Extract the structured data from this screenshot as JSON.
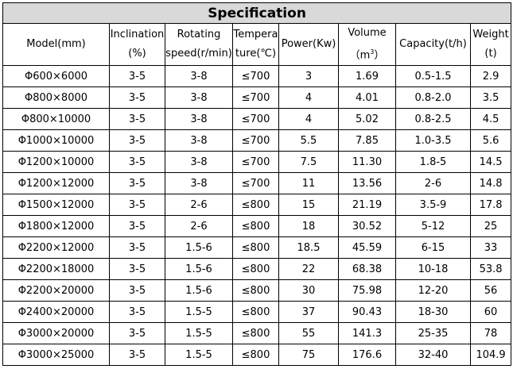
{
  "title": "Specification",
  "headers": {
    "model": "Model(mm)",
    "inclination_1": "Inclination",
    "inclination_2": "(%)",
    "rotating_1": "Rotating",
    "rotating_2": "speed(r/min)",
    "temperature_1": "Tempera",
    "temperature_2": "ture(℃)",
    "power": "Power(Kw)",
    "volume_1": "Volume",
    "volume_2": "（m",
    "volume_sup": "3",
    "volume_3": "）",
    "capacity": "Capacity(t/h)",
    "weight_1": "Weight",
    "weight_2": "(t)"
  },
  "rows": [
    {
      "model": "Φ600×6000",
      "inclination": "3-5",
      "speed": "3-8",
      "temperature": "≤700",
      "power": "3",
      "volume": "1.69",
      "capacity": "0.5-1.5",
      "weight": "2.9"
    },
    {
      "model": "Φ800×8000",
      "inclination": "3-5",
      "speed": "3-8",
      "temperature": "≤700",
      "power": "4",
      "volume": "4.01",
      "capacity": "0.8-2.0",
      "weight": "3.5"
    },
    {
      "model": "Φ800×10000",
      "inclination": "3-5",
      "speed": "3-8",
      "temperature": "≤700",
      "power": "4",
      "volume": "5.02",
      "capacity": "0.8-2.5",
      "weight": "4.5"
    },
    {
      "model": "Φ1000×10000",
      "inclination": "3-5",
      "speed": "3-8",
      "temperature": "≤700",
      "power": "5.5",
      "volume": "7.85",
      "capacity": "1.0-3.5",
      "weight": "5.6"
    },
    {
      "model": "Φ1200×10000",
      "inclination": "3-5",
      "speed": "3-8",
      "temperature": "≤700",
      "power": "7.5",
      "volume": "11.30",
      "capacity": "1.8-5",
      "weight": "14.5"
    },
    {
      "model": "Φ1200×12000",
      "inclination": "3-5",
      "speed": "3-8",
      "temperature": "≤700",
      "power": "11",
      "volume": "13.56",
      "capacity": "2-6",
      "weight": "14.8"
    },
    {
      "model": "Φ1500×12000",
      "inclination": "3-5",
      "speed": "2-6",
      "temperature": "≤800",
      "power": "15",
      "volume": "21.19",
      "capacity": "3.5-9",
      "weight": "17.8"
    },
    {
      "model": "Φ1800×12000",
      "inclination": "3-5",
      "speed": "2-6",
      "temperature": "≤800",
      "power": "18",
      "volume": "30.52",
      "capacity": "5-12",
      "weight": "25"
    },
    {
      "model": "Φ2200×12000",
      "inclination": "3-5",
      "speed": "1.5-6",
      "temperature": "≤800",
      "power": "18.5",
      "volume": "45.59",
      "capacity": "6-15",
      "weight": "33"
    },
    {
      "model": "Φ2200×18000",
      "inclination": "3-5",
      "speed": "1.5-6",
      "temperature": "≤800",
      "power": "22",
      "volume": "68.38",
      "capacity": "10-18",
      "weight": "53.8"
    },
    {
      "model": "Φ2200×20000",
      "inclination": "3-5",
      "speed": "1.5-6",
      "temperature": "≤800",
      "power": "30",
      "volume": "75.98",
      "capacity": "12-20",
      "weight": "56"
    },
    {
      "model": "Φ2400×20000",
      "inclination": "3-5",
      "speed": "1.5-5",
      "temperature": "≤800",
      "power": "37",
      "volume": "90.43",
      "capacity": "18-30",
      "weight": "60"
    },
    {
      "model": "Φ3000×20000",
      "inclination": "3-5",
      "speed": "1.5-5",
      "temperature": "≤800",
      "power": "55",
      "volume": "141.3",
      "capacity": "25-35",
      "weight": "78"
    },
    {
      "model": "Φ3000×25000",
      "inclination": "3-5",
      "speed": "1.5-5",
      "temperature": "≤800",
      "power": "75",
      "volume": "176.6",
      "capacity": "32-40",
      "weight": "104.9"
    }
  ]
}
